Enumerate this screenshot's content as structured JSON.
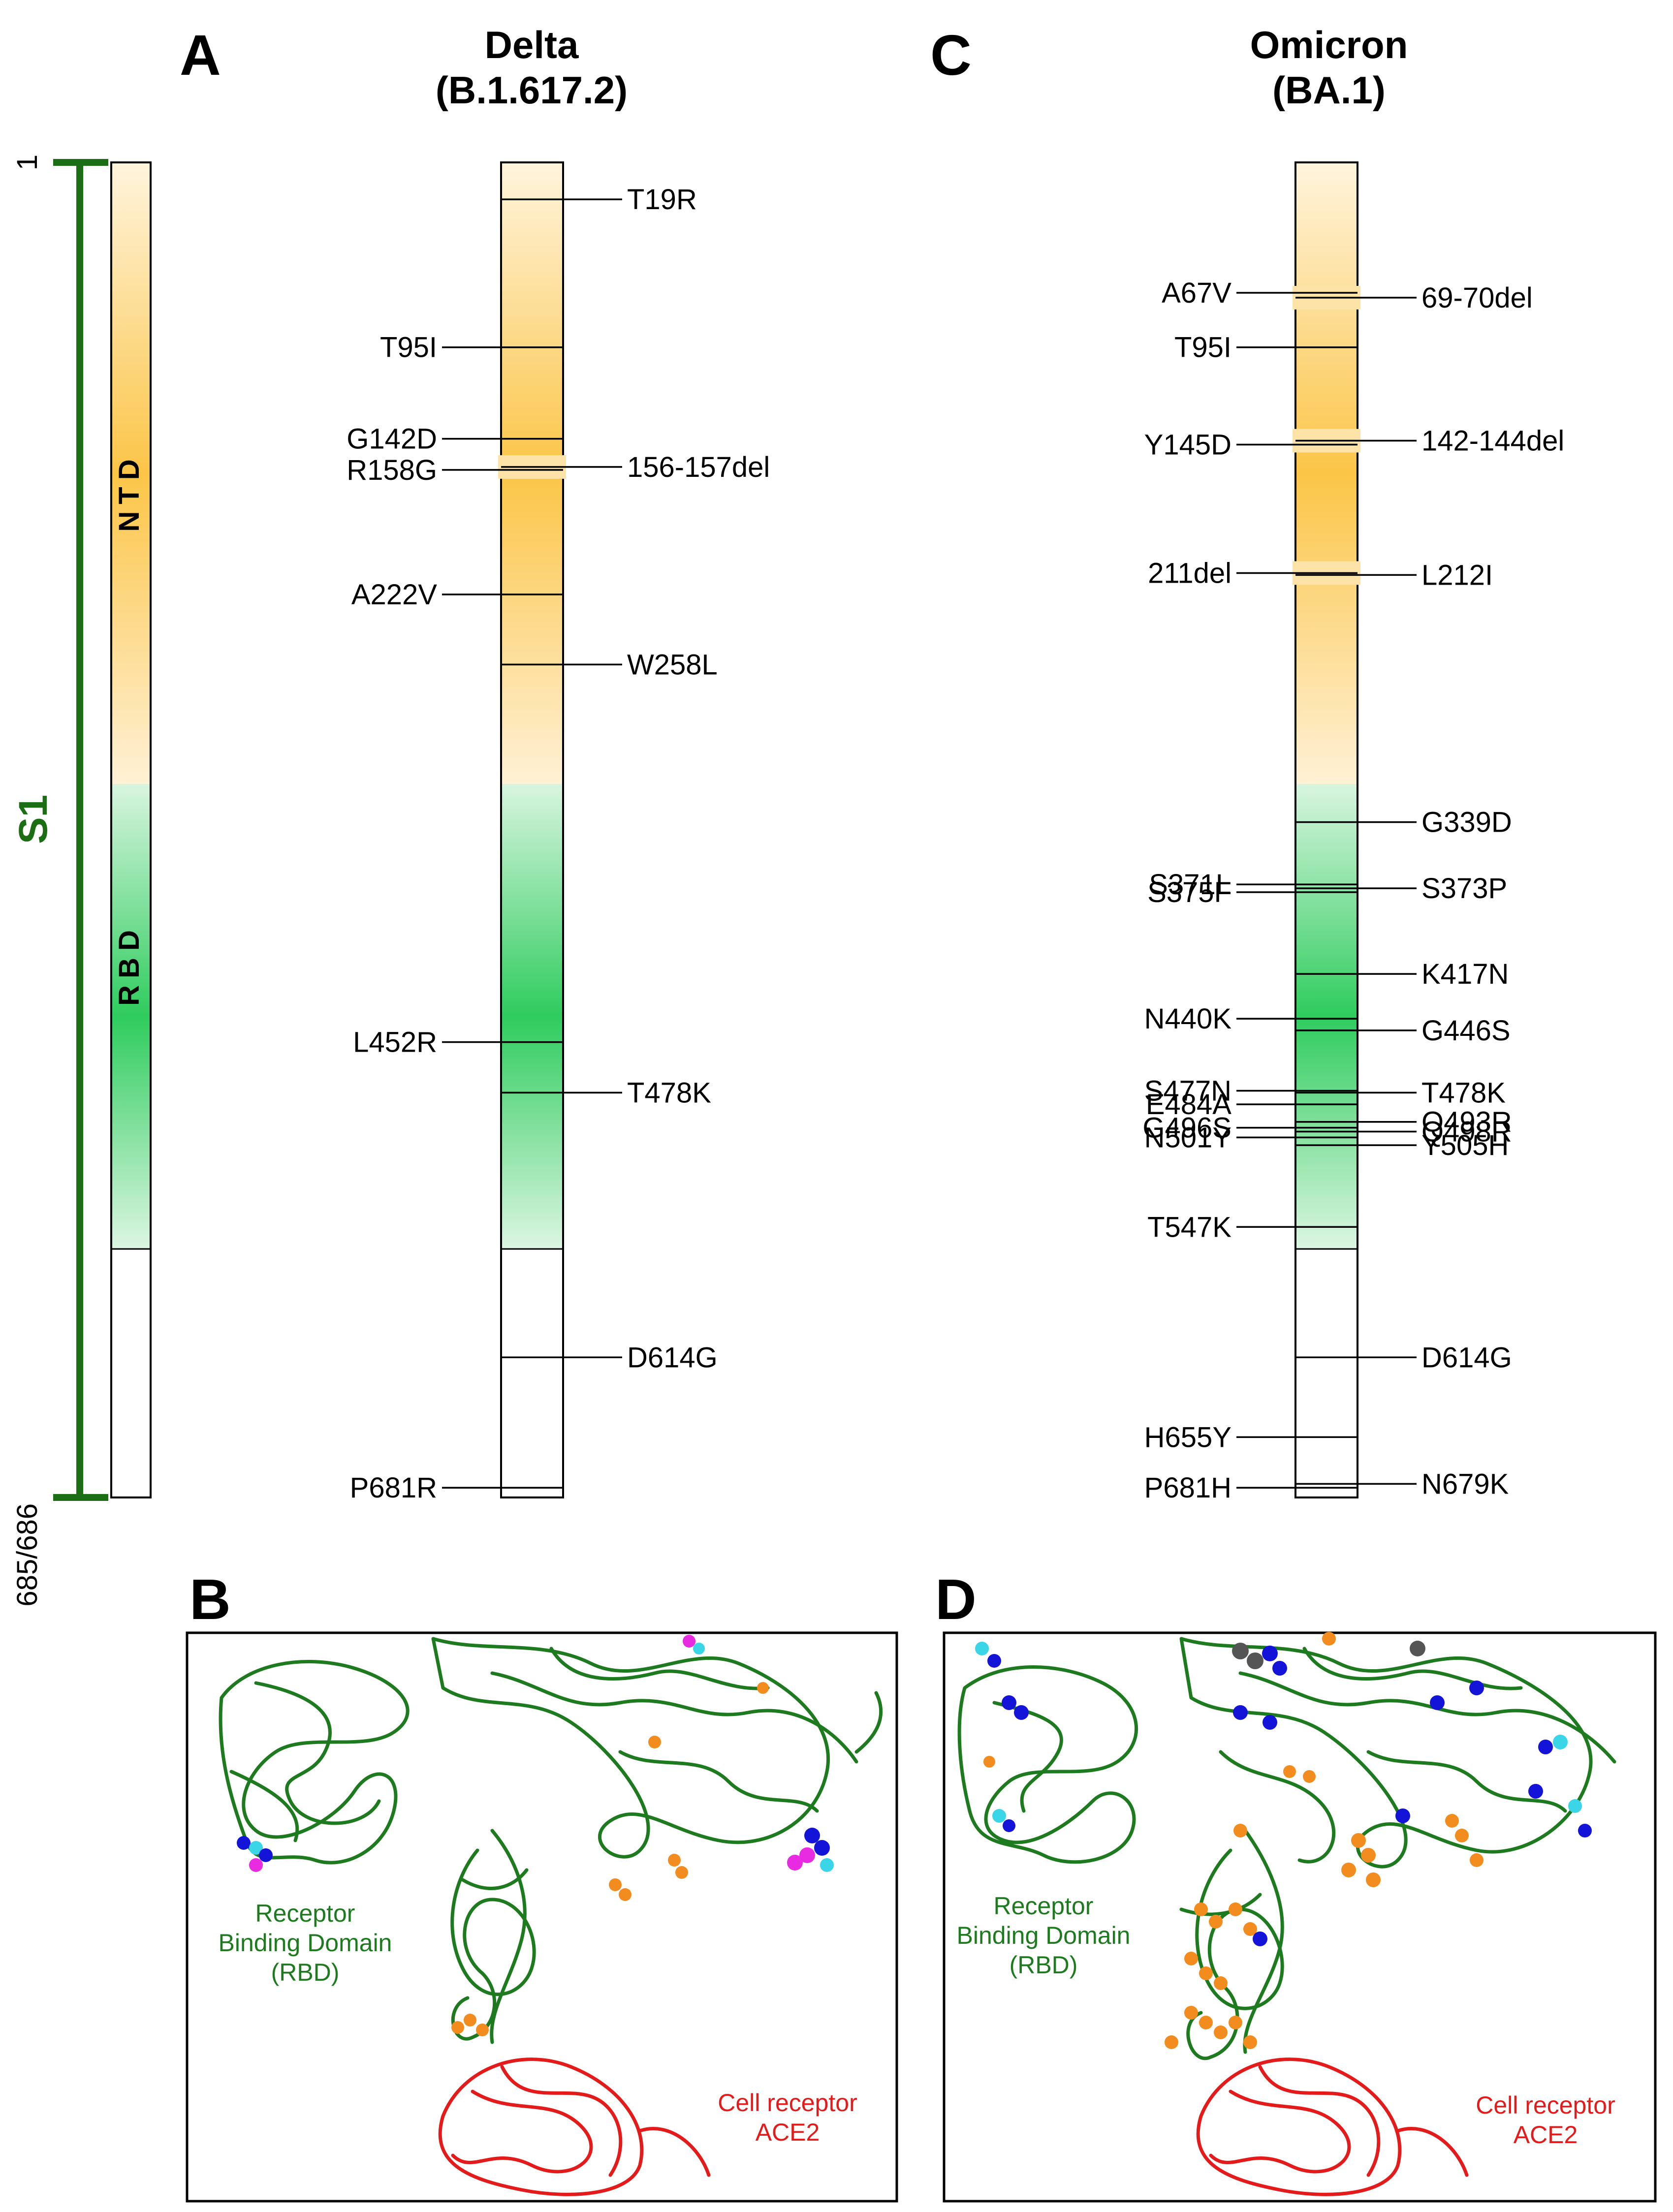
{
  "panels": {
    "A": {
      "letter": "A",
      "title_line1": "Delta",
      "title_line2": "(B.1.617.2)"
    },
    "B": {
      "letter": "B",
      "rbd_label": [
        "Receptor",
        "Binding Domain",
        "(RBD)"
      ],
      "ace2_label": [
        "Cell receptor",
        "ACE2"
      ]
    },
    "C": {
      "letter": "C",
      "title_line1": "Omicron",
      "title_line2": "(BA.1)"
    },
    "D": {
      "letter": "D",
      "rbd_label": [
        "Receptor",
        "Binding Domain",
        "(RBD)"
      ],
      "ace2_label": [
        "Cell receptor",
        "ACE2"
      ]
    }
  },
  "s1_scale": {
    "label": "S1",
    "start": "1",
    "end": "685/686"
  },
  "domains": {
    "ntd": "NTD",
    "rbd": "RBD"
  },
  "colors": {
    "ntd": "#fbbf3c",
    "rbd": "#27c256",
    "s1": "#1b6e13",
    "protein_chain": "#1e7a1e",
    "ace2": "#e31b1b",
    "mut_orange": "#f28c1e",
    "mut_blue": "#1414d8",
    "mut_cyan": "#3ad6e8",
    "mut_magenta": "#e82ae0",
    "mut_gray": "#555555"
  },
  "delta": {
    "deletions": [
      {
        "label": "156-157del",
        "pos": 156.5,
        "side": "right"
      }
    ],
    "mutations": [
      {
        "label": "T19R",
        "pos": 19,
        "side": "right"
      },
      {
        "label": "T95I",
        "pos": 95,
        "side": "left"
      },
      {
        "label": "G142D",
        "pos": 142,
        "side": "left"
      },
      {
        "label": "R158G",
        "pos": 158,
        "side": "left"
      },
      {
        "label": "A222V",
        "pos": 222,
        "side": "left"
      },
      {
        "label": "W258L",
        "pos": 258,
        "side": "right"
      },
      {
        "label": "L452R",
        "pos": 452,
        "side": "left"
      },
      {
        "label": "T478K",
        "pos": 478,
        "side": "right"
      },
      {
        "label": "D614G",
        "pos": 614,
        "side": "right"
      },
      {
        "label": "P681R",
        "pos": 681,
        "side": "left"
      }
    ]
  },
  "omicron": {
    "deletions": [
      {
        "label": "69-70del",
        "pos": 69.5,
        "side": "right"
      },
      {
        "label": "142-144del",
        "pos": 143,
        "side": "right"
      },
      {
        "label": "211del",
        "pos": 211,
        "side": "left"
      }
    ],
    "mutations": [
      {
        "label": "A67V",
        "pos": 67,
        "side": "left"
      },
      {
        "label": "T95I",
        "pos": 95,
        "side": "left"
      },
      {
        "label": "Y145D",
        "pos": 145,
        "side": "left"
      },
      {
        "label": "L212I",
        "pos": 212,
        "side": "right"
      },
      {
        "label": "G339D",
        "pos": 339,
        "side": "right"
      },
      {
        "label": "S371L",
        "pos": 371,
        "side": "left"
      },
      {
        "label": "S373P",
        "pos": 373,
        "side": "right"
      },
      {
        "label": "S375F",
        "pos": 375,
        "side": "left"
      },
      {
        "label": "K417N",
        "pos": 417,
        "side": "right"
      },
      {
        "label": "N440K",
        "pos": 440,
        "side": "left"
      },
      {
        "label": "G446S",
        "pos": 446,
        "side": "right"
      },
      {
        "label": "S477N",
        "pos": 477,
        "side": "left"
      },
      {
        "label": "T478K",
        "pos": 478,
        "side": "right"
      },
      {
        "label": "E484A",
        "pos": 484,
        "side": "left"
      },
      {
        "label": "Q493R",
        "pos": 493,
        "side": "right"
      },
      {
        "label": "G496S",
        "pos": 496,
        "side": "left"
      },
      {
        "label": "Q498R",
        "pos": 498,
        "side": "right"
      },
      {
        "label": "N501Y",
        "pos": 501,
        "side": "left"
      },
      {
        "label": "Y505H",
        "pos": 505,
        "side": "right"
      },
      {
        "label": "T547K",
        "pos": 547,
        "side": "left"
      },
      {
        "label": "D614G",
        "pos": 614,
        "side": "right"
      },
      {
        "label": "H655Y",
        "pos": 655,
        "side": "left"
      },
      {
        "label": "N679K",
        "pos": 679,
        "side": "right"
      },
      {
        "label": "P681H",
        "pos": 681,
        "side": "left"
      }
    ]
  }
}
